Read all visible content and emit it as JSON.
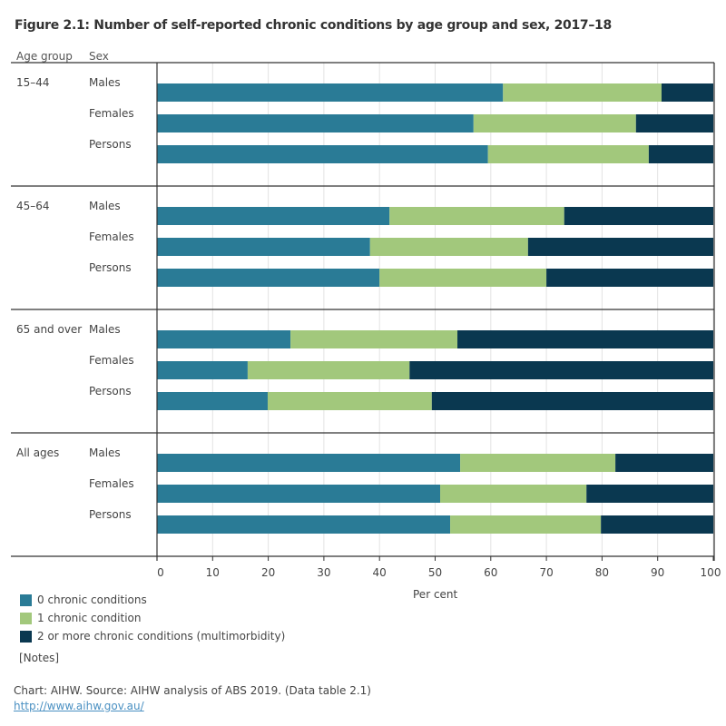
{
  "chart_data": {
    "type": "bar",
    "orientation": "horizontal",
    "stacked": true,
    "title": "Figure 2.1: Number of self-reported chronic conditions by age group and sex, 2017–18",
    "xlabel": "Per cent",
    "row_headers": [
      "Age group",
      "Sex"
    ],
    "xlim": [
      0,
      100
    ],
    "xticks": [
      0,
      10,
      20,
      30,
      40,
      50,
      60,
      70,
      80,
      90,
      100
    ],
    "grid": true,
    "legend_position": "bottom-left",
    "groups": [
      {
        "name": "15–44",
        "categories": [
          "Males",
          "Females",
          "Persons"
        ]
      },
      {
        "name": "45–64",
        "categories": [
          "Males",
          "Females",
          "Persons"
        ]
      },
      {
        "name": "65 and over",
        "categories": [
          "Males",
          "Females",
          "Persons"
        ]
      },
      {
        "name": "All ages",
        "categories": [
          "Males",
          "Females",
          "Persons"
        ]
      }
    ],
    "series": [
      {
        "name": "0 chronic conditions",
        "color": "#2a7b96",
        "values": [
          [
            62.2,
            56.9,
            59.5
          ],
          [
            41.8,
            38.3,
            40.0
          ],
          [
            24.0,
            16.3,
            19.9
          ],
          [
            54.5,
            50.9,
            52.7
          ]
        ]
      },
      {
        "name": "1 chronic condition",
        "color": "#a2c87c",
        "values": [
          [
            28.5,
            29.2,
            28.9
          ],
          [
            31.4,
            28.4,
            30.0
          ],
          [
            30.0,
            29.1,
            29.5
          ],
          [
            27.9,
            26.3,
            27.1
          ]
        ]
      },
      {
        "name": "2 or more chronic conditions (multimorbidity)",
        "color": "#0a3850",
        "values": [
          [
            9.3,
            13.9,
            11.6
          ],
          [
            26.8,
            33.3,
            30.0
          ],
          [
            46.0,
            54.6,
            50.6
          ],
          [
            17.6,
            22.8,
            20.2
          ]
        ]
      }
    ]
  },
  "notes_label": "[Notes]",
  "source_text": "Chart: AIHW. Source: AIHW analysis of ABS 2019. (Data table 2.1)",
  "link_text": "http://www.aihw.gov.au/"
}
